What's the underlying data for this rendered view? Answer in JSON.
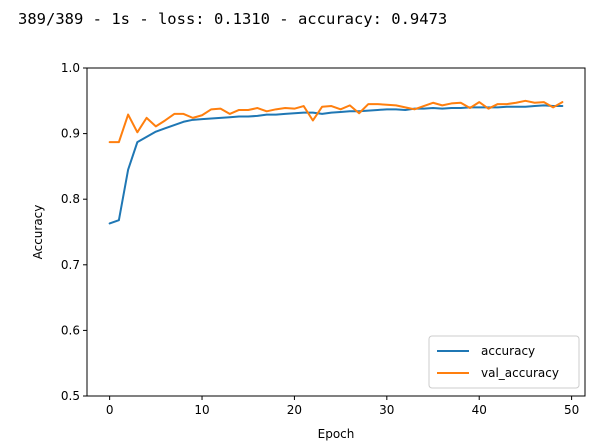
{
  "log": {
    "text": "389/389 - 1s - loss: 0.1310 - accuracy: 0.9473"
  },
  "chart_data": {
    "type": "line",
    "title": "",
    "xlabel": "Epoch",
    "ylabel": "Accuracy",
    "xlim": [
      -2.45,
      51.45
    ],
    "ylim": [
      0.5,
      1.0
    ],
    "xticks": [
      0,
      10,
      20,
      30,
      40,
      50
    ],
    "yticks": [
      0.5,
      0.6,
      0.7,
      0.8,
      0.9,
      1.0
    ],
    "xtick_labels": [
      "0",
      "10",
      "20",
      "30",
      "40",
      "50"
    ],
    "ytick_labels": [
      "0.5",
      "0.6",
      "0.7",
      "0.8",
      "0.9",
      "1.0"
    ],
    "grid": false,
    "legend_position": "bottom-right",
    "x": [
      0,
      1,
      2,
      3,
      4,
      5,
      6,
      7,
      8,
      9,
      10,
      11,
      12,
      13,
      14,
      15,
      16,
      17,
      18,
      19,
      20,
      21,
      22,
      23,
      24,
      25,
      26,
      27,
      28,
      29,
      30,
      31,
      32,
      33,
      34,
      35,
      36,
      37,
      38,
      39,
      40,
      41,
      42,
      43,
      44,
      45,
      46,
      47,
      48,
      49
    ],
    "series": [
      {
        "name": "accuracy",
        "color": "#1f77b4",
        "values": [
          0.763,
          0.768,
          0.845,
          0.887,
          0.895,
          0.903,
          0.908,
          0.913,
          0.918,
          0.921,
          0.922,
          0.923,
          0.924,
          0.925,
          0.926,
          0.926,
          0.927,
          0.929,
          0.929,
          0.93,
          0.931,
          0.932,
          0.932,
          0.93,
          0.932,
          0.933,
          0.934,
          0.934,
          0.935,
          0.936,
          0.937,
          0.937,
          0.936,
          0.938,
          0.938,
          0.939,
          0.938,
          0.939,
          0.939,
          0.94,
          0.94,
          0.94,
          0.94,
          0.941,
          0.941,
          0.941,
          0.942,
          0.943,
          0.942,
          0.942
        ]
      },
      {
        "name": "val_accuracy",
        "color": "#ff7f0e",
        "values": [
          0.887,
          0.887,
          0.929,
          0.902,
          0.924,
          0.911,
          0.92,
          0.93,
          0.93,
          0.924,
          0.928,
          0.937,
          0.938,
          0.93,
          0.936,
          0.936,
          0.939,
          0.934,
          0.937,
          0.939,
          0.938,
          0.942,
          0.92,
          0.941,
          0.942,
          0.937,
          0.943,
          0.931,
          0.945,
          0.945,
          0.944,
          0.943,
          0.94,
          0.937,
          0.942,
          0.947,
          0.943,
          0.946,
          0.947,
          0.939,
          0.948,
          0.938,
          0.945,
          0.945,
          0.947,
          0.95,
          0.947,
          0.948,
          0.94,
          0.948
        ]
      }
    ]
  }
}
